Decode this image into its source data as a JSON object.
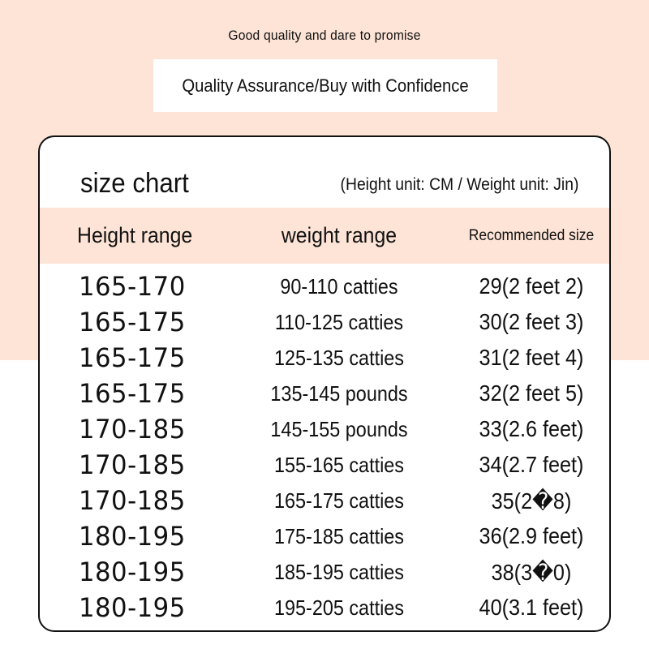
{
  "header": {
    "tagline": "Good quality and dare to promise",
    "banner": "Quality Assurance/Buy with Confidence"
  },
  "size_chart": {
    "title": "size chart",
    "unit_note": "(Height unit: CM / Weight unit: Jin)",
    "columns": [
      "Height range",
      "weight range",
      "Recommended size"
    ],
    "rows": [
      {
        "height": "165-170",
        "weight": "90-110 catties",
        "size": "29(2 feet 2)"
      },
      {
        "height": "165-175",
        "weight": "110-125 catties",
        "size": "30(2 feet 3)"
      },
      {
        "height": "165-175",
        "weight": "125-135 catties",
        "size": "31(2 feet 4)"
      },
      {
        "height": "165-175",
        "weight": "135-145 pounds",
        "size": "32(2 feet 5)"
      },
      {
        "height": "170-185",
        "weight": "145-155 pounds",
        "size": "33(2.6 feet)"
      },
      {
        "height": "170-185",
        "weight": "155-165 catties",
        "size": "34(2.7 feet)"
      },
      {
        "height": "170-185",
        "weight": "165-175 catties",
        "size": "35(2�8)"
      },
      {
        "height": "180-195",
        "weight": "175-185 catties",
        "size": "36(2.9 feet)"
      },
      {
        "height": "180-195",
        "weight": "185-195 catties",
        "size": "38(3�0)"
      },
      {
        "height": "180-195",
        "weight": "195-205 catties",
        "size": "40(3.1 feet)"
      }
    ]
  },
  "colors": {
    "background_top": "#fde4d6",
    "header_band": "#fde4d6",
    "card_border": "#111111"
  }
}
